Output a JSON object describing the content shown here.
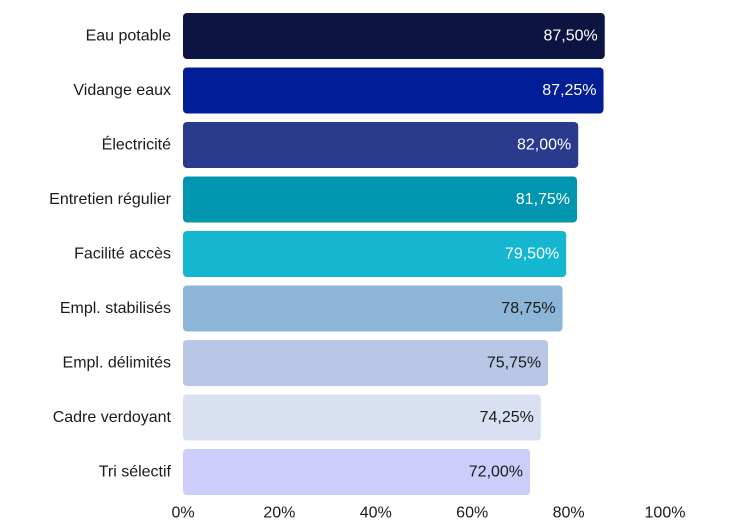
{
  "chart_data": {
    "type": "bar",
    "orientation": "horizontal",
    "categories": [
      "Eau potable",
      "Vidange eaux",
      "Électricité",
      "Entretien régulier",
      "Facilité accès",
      "Empl. stabilisés",
      "Empl. délimités",
      "Cadre verdoyant",
      "Tri sélectif"
    ],
    "values": [
      87.5,
      87.25,
      82.0,
      81.75,
      79.5,
      78.75,
      75.75,
      74.25,
      72.0
    ],
    "value_labels": [
      "87,50%",
      "87,25%",
      "82,00%",
      "81,75%",
      "79,50%",
      "78,75%",
      "75,75%",
      "74,25%",
      "72,00%"
    ],
    "bar_colors": [
      "#0e1442",
      "#021e96",
      "#2a3a8c",
      "#0096b0",
      "#14b6d0",
      "#8cb5d8",
      "#b8c7e6",
      "#d9e0f2",
      "#cccdfa"
    ],
    "label_colors": [
      "#ffffff",
      "#ffffff",
      "#ffffff",
      "#ffffff",
      "#ffffff",
      "#1a1a1a",
      "#1a1a1a",
      "#1a1a1a",
      "#1a1a1a"
    ],
    "x_ticks": [
      "0%",
      "20%",
      "40%",
      "60%",
      "80%",
      "100%"
    ],
    "x_tick_values": [
      0,
      20,
      40,
      60,
      80,
      100
    ],
    "xlim": [
      0,
      100
    ],
    "grid": false,
    "legend": "none",
    "title": "",
    "xlabel": "",
    "ylabel": ""
  }
}
